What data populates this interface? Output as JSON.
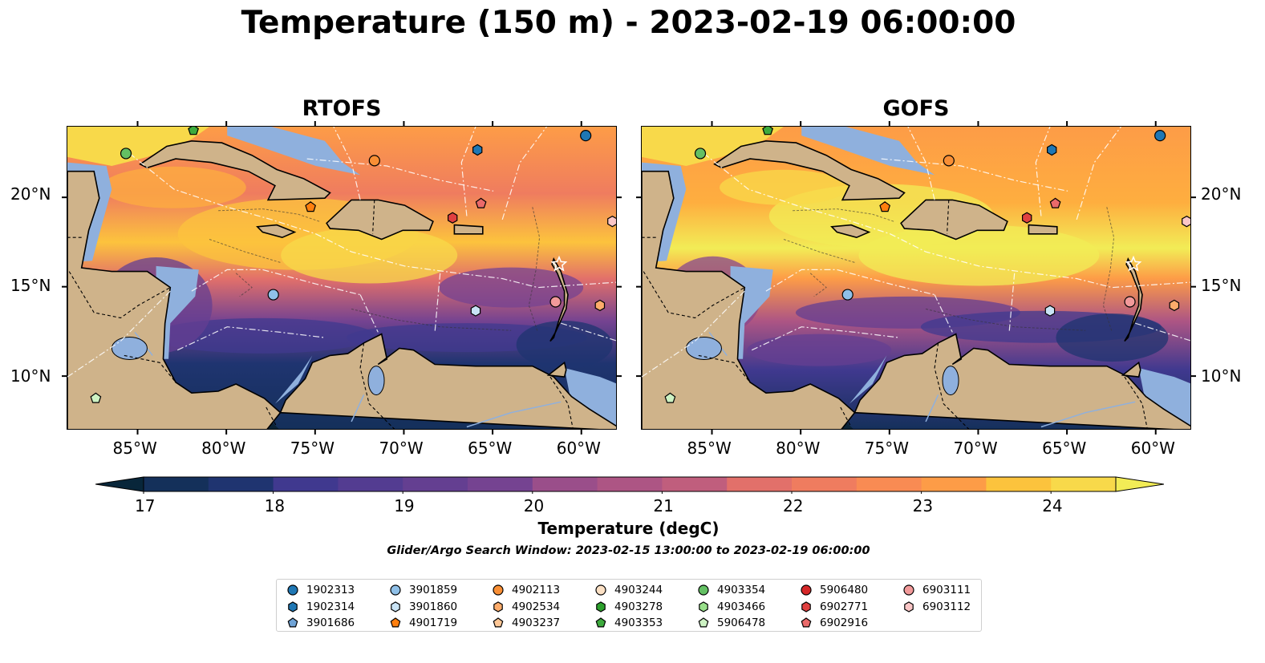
{
  "title": "Temperature (150 m) - 2023-02-19 06:00:00",
  "maps": [
    {
      "title": "RTOFS"
    },
    {
      "title": "GOFS"
    }
  ],
  "axes": {
    "x_ticks": [
      "85°W",
      "80°W",
      "75°W",
      "70°W",
      "65°W",
      "60°W"
    ],
    "y_ticks": [
      "20°N",
      "15°N",
      "10°N"
    ],
    "lon_range": [
      -89,
      -58
    ],
    "lat_range": [
      7,
      24
    ]
  },
  "colorbar": {
    "label": "Temperature (degC)",
    "ticks": [
      "17",
      "18",
      "19",
      "20",
      "21",
      "22",
      "23",
      "24"
    ],
    "range": [
      17,
      24.5
    ],
    "colors": [
      "#08263a",
      "#14305a",
      "#1f3470",
      "#2e3889",
      "#40398f",
      "#533c91",
      "#643f91",
      "#754391",
      "#87488e",
      "#9a4e8a",
      "#ad5584",
      "#c05e7d",
      "#d26674",
      "#e2706a",
      "#ef7c5f",
      "#f98b53",
      "#fd9c47",
      "#feae3f",
      "#fcc33d",
      "#f8d94a",
      "#f2ec56"
    ]
  },
  "subtitle": "Glider/Argo Search Window: 2023-02-15 13:00:00 to 2023-02-19 06:00:00",
  "legend": [
    {
      "id": "1902313",
      "marker": "circle",
      "color": "#1f77b4"
    },
    {
      "id": "1902314",
      "marker": "hexagon",
      "color": "#1f77b4"
    },
    {
      "id": "3901686",
      "marker": "pentagon",
      "color": "#6fa3d6"
    },
    {
      "id": "3901859",
      "marker": "circle",
      "color": "#8fc0e8"
    },
    {
      "id": "3901860",
      "marker": "hexagon",
      "color": "#c9e3f5"
    },
    {
      "id": "4901719",
      "marker": "pentagon",
      "color": "#ff7f0e"
    },
    {
      "id": "4902113",
      "marker": "circle",
      "color": "#f98f35"
    },
    {
      "id": "4902534",
      "marker": "hexagon",
      "color": "#fdac6b"
    },
    {
      "id": "4903237",
      "marker": "pentagon",
      "color": "#fec796"
    },
    {
      "id": "4903244",
      "marker": "circle",
      "color": "#fbe0c4"
    },
    {
      "id": "4903278",
      "marker": "hexagon",
      "color": "#2ca02c"
    },
    {
      "id": "4903353",
      "marker": "pentagon",
      "color": "#3daa3d"
    },
    {
      "id": "4903354",
      "marker": "circle",
      "color": "#63c063"
    },
    {
      "id": "4903466",
      "marker": "hexagon",
      "color": "#98df8a"
    },
    {
      "id": "5906478",
      "marker": "pentagon",
      "color": "#cdf2c3"
    },
    {
      "id": "5906480",
      "marker": "circle",
      "color": "#d62728"
    },
    {
      "id": "6902771",
      "marker": "hexagon",
      "color": "#e04040"
    },
    {
      "id": "6902916",
      "marker": "pentagon",
      "color": "#ea6a6a"
    },
    {
      "id": "6903111",
      "marker": "circle",
      "color": "#f29a9a"
    },
    {
      "id": "6903112",
      "marker": "hexagon",
      "color": "#fac6c6"
    }
  ],
  "floats": [
    {
      "id": "4903353",
      "lon": -81.9,
      "lat": 23.8
    },
    {
      "id": "4903354",
      "lon": -85.7,
      "lat": 22.5
    },
    {
      "id": "1902313",
      "lon": -59.8,
      "lat": 23.5
    },
    {
      "id": "1902314",
      "lon": -65.9,
      "lat": 22.7
    },
    {
      "id": "4902113",
      "lon": -71.7,
      "lat": 22.1
    },
    {
      "id": "4901719",
      "lon": -75.3,
      "lat": 19.5
    },
    {
      "id": "6902916",
      "lon": -65.7,
      "lat": 19.7
    },
    {
      "id": "6902771",
      "lon": -67.3,
      "lat": 18.9
    },
    {
      "id": "6903112",
      "lon": -58.3,
      "lat": 18.7
    },
    {
      "id": "3901859",
      "lon": -77.4,
      "lat": 14.6
    },
    {
      "id": "3901860",
      "lon": -66.0,
      "lat": 13.7
    },
    {
      "id": "6903111",
      "lon": -61.5,
      "lat": 14.2
    },
    {
      "id": "4902534",
      "lon": -59.0,
      "lat": 14.0
    },
    {
      "id": "5906478",
      "lon": -87.4,
      "lat": 8.8
    }
  ]
}
